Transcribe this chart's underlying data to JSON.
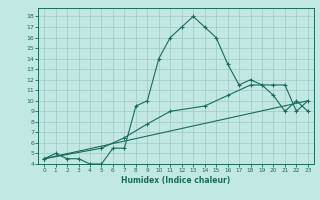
{
  "xlabel": "Humidex (Indice chaleur)",
  "bg_color": "#c2e8e4",
  "grid_color": "#a0c8c4",
  "line_color": "#1a6b5a",
  "xlim": [
    -0.5,
    23.5
  ],
  "ylim": [
    4,
    18.8
  ],
  "yticks": [
    4,
    5,
    6,
    7,
    8,
    9,
    10,
    11,
    12,
    13,
    14,
    15,
    16,
    17,
    18
  ],
  "xticks": [
    0,
    1,
    2,
    3,
    4,
    5,
    6,
    7,
    8,
    9,
    10,
    11,
    12,
    13,
    14,
    15,
    16,
    17,
    18,
    19,
    20,
    21,
    22,
    23
  ],
  "curve1_x": [
    0,
    1,
    2,
    3,
    4,
    5,
    6,
    7,
    8,
    9,
    10,
    11,
    12,
    13,
    14,
    15,
    16,
    17,
    18,
    19,
    20,
    21,
    22,
    23
  ],
  "curve1_y": [
    4.5,
    5.0,
    4.5,
    4.5,
    4.0,
    4.0,
    5.5,
    5.5,
    9.5,
    10.0,
    14.0,
    16.0,
    17.0,
    18.0,
    17.0,
    16.0,
    13.5,
    11.5,
    12.0,
    11.5,
    10.5,
    9.0,
    10.0,
    9.0
  ],
  "curve2_x": [
    0,
    23
  ],
  "curve2_y": [
    4.5,
    10.0
  ],
  "curve3_x": [
    0,
    5,
    7,
    9,
    11,
    14,
    16,
    18,
    20,
    21,
    22,
    23
  ],
  "curve3_y": [
    4.5,
    5.5,
    6.5,
    7.8,
    9.0,
    9.5,
    10.5,
    11.5,
    11.5,
    11.5,
    9.0,
    10.0
  ]
}
